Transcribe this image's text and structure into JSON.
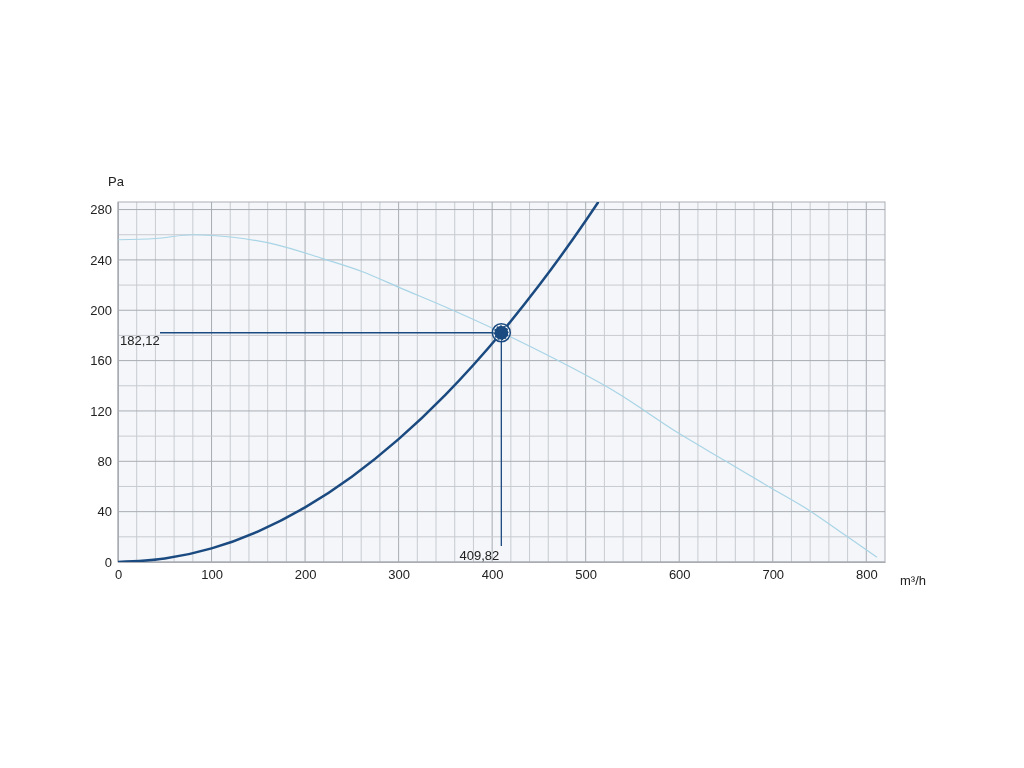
{
  "chart_data": {
    "type": "line",
    "xlabel": "m³/h",
    "ylabel": "Pa",
    "xlim": [
      0,
      820
    ],
    "xticks": [
      0,
      {
        "value": 20,
        "label": null
      },
      {
        "value": 40,
        "label": null
      },
      {
        "value": 60,
        "label": null
      },
      {
        "value": 80,
        "label": null
      },
      100,
      {
        "value": 120,
        "label": null
      },
      {
        "value": 140,
        "label": null
      },
      {
        "value": 160,
        "label": null
      },
      {
        "value": 180,
        "label": null
      },
      200,
      {
        "value": 220,
        "label": null
      },
      {
        "value": 240,
        "label": null
      },
      {
        "value": 260,
        "label": null
      },
      {
        "value": 280,
        "label": null
      },
      300,
      {
        "value": 320,
        "label": null
      },
      {
        "value": 340,
        "label": null
      },
      {
        "value": 360,
        "label": null
      },
      {
        "value": 380,
        "label": null
      },
      400,
      {
        "value": 420,
        "label": null
      },
      {
        "value": 440,
        "label": null
      },
      {
        "value": 460,
        "label": null
      },
      {
        "value": 480,
        "label": null
      },
      500,
      {
        "value": 520,
        "label": null
      },
      {
        "value": 540,
        "label": null
      },
      {
        "value": 560,
        "label": null
      },
      {
        "value": 580,
        "label": null
      },
      600,
      {
        "value": 620,
        "label": null
      },
      {
        "value": 640,
        "label": null
      },
      {
        "value": 660,
        "label": null
      },
      {
        "value": 680,
        "label": null
      },
      700,
      {
        "value": 720,
        "label": null
      },
      {
        "value": 740,
        "label": null
      },
      {
        "value": 760,
        "label": null
      },
      {
        "value": 780,
        "label": null
      },
      800
    ],
    "ylim": [
      0,
      286
    ],
    "yticks": [
      0,
      {
        "value": 20,
        "label": null
      },
      40,
      {
        "value": 60,
        "label": null
      },
      80,
      {
        "value": 100,
        "label": null
      },
      120,
      {
        "value": 140,
        "label": null
      },
      160,
      {
        "value": 180,
        "label": null
      },
      200,
      {
        "value": 220,
        "label": null
      },
      240,
      {
        "value": 260,
        "label": null
      },
      280
    ],
    "grid": true,
    "marker": "none",
    "series": [
      {
        "color": "#a8d4e6",
        "x": [
          0,
          40,
          80,
          123,
          170,
          219,
          260,
          301,
          358,
          425,
          460,
          530,
          600,
          650,
          700,
          739,
          780,
          811
        ],
        "values": [
          256,
          257,
          260,
          258,
          252,
          241,
          231,
          218,
          200,
          177,
          164,
          136,
          102,
          80,
          58,
          41,
          20,
          4
        ]
      },
      {
        "color": "#1b4a80",
        "x": [
          0,
          50,
          100,
          150,
          200,
          250,
          300,
          350,
          409.82,
          450,
          500,
          513
        ],
        "values": [
          0,
          2.7,
          10.8,
          24.4,
          43.4,
          67.8,
          97.6,
          132.8,
          182.12,
          219.6,
          271.1,
          285.4
        ]
      },
      {
        "type": "scatter",
        "marker": "circle",
        "color": "#1b4a80",
        "x": [
          409.82
        ],
        "values": [
          182.12
        ]
      }
    ],
    "ref_lines": [
      {
        "axis": "y",
        "value": 182.12,
        "label": "182,12",
        "color": "#1b4a80"
      },
      {
        "axis": "x",
        "value": 409.82,
        "label": "409,82",
        "color": "#1b4a80"
      }
    ]
  }
}
